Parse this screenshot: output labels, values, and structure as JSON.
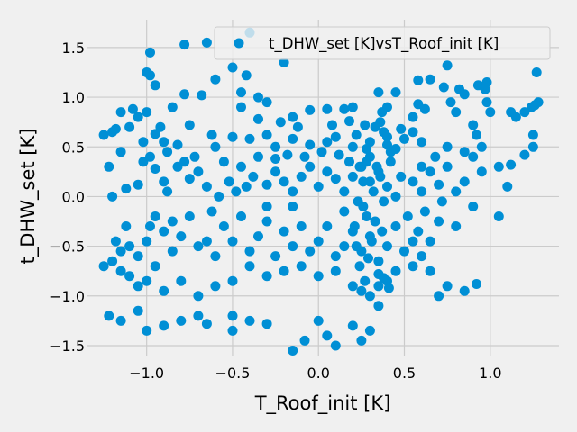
{
  "chart_data": {
    "type": "scatter",
    "title": "",
    "xlabel": "T_Roof_init [K]",
    "ylabel": "t_DHW_set [K]",
    "xlim": [
      -1.35,
      1.4
    ],
    "ylim": [
      -1.6,
      1.78
    ],
    "xticks": [
      -1.0,
      -0.5,
      0.0,
      0.5,
      1.0
    ],
    "xtick_labels": [
      "−1.0",
      "−0.5",
      "0.0",
      "0.5",
      "1.0"
    ],
    "yticks": [
      -1.5,
      -1.0,
      -0.5,
      0.0,
      0.5,
      1.0,
      1.5
    ],
    "ytick_labels": [
      "−1.5",
      "−1.0",
      "−0.5",
      "0.0",
      "0.5",
      "1.0",
      "1.5"
    ],
    "grid": true,
    "legend_position": "top-right",
    "colors": {
      "background": "#f0f0f0",
      "grid": "#cbcbcb",
      "marker": "#008fd5",
      "legend_bg": "#f0f0f0",
      "legend_border": "#cccccc"
    },
    "series": [
      {
        "name": "t_DHW_set [K]vsT_Roof_init [K]",
        "color": "#008fd5",
        "points": [
          [
            -0.4,
            1.65
          ],
          [
            -0.65,
            1.55
          ],
          [
            -0.78,
            1.53
          ],
          [
            -0.5,
            1.3
          ],
          [
            -0.98,
            1.45
          ],
          [
            -1.0,
            1.25
          ],
          [
            -0.98,
            1.22
          ],
          [
            -0.95,
            1.12
          ],
          [
            -0.78,
            1.03
          ],
          [
            -0.68,
            1.02
          ],
          [
            -0.6,
            1.18
          ],
          [
            -0.42,
            1.22
          ],
          [
            -0.45,
            1.05
          ],
          [
            -0.35,
            1.0
          ],
          [
            -0.2,
            1.35
          ],
          [
            0.35,
            1.05
          ],
          [
            0.45,
            1.05
          ],
          [
            0.58,
            1.17
          ],
          [
            0.65,
            1.18
          ],
          [
            0.75,
            1.32
          ],
          [
            0.73,
            1.1
          ],
          [
            0.93,
            1.12
          ],
          [
            0.98,
            1.15
          ],
          [
            0.97,
            1.08
          ],
          [
            0.85,
            1.03
          ],
          [
            0.82,
            1.08
          ],
          [
            1.27,
            1.25
          ],
          [
            1.26,
            0.92
          ],
          [
            1.28,
            0.95
          ],
          [
            1.24,
            0.9
          ],
          [
            1.2,
            0.85
          ],
          [
            1.15,
            0.8
          ],
          [
            1.12,
            0.85
          ],
          [
            1.0,
            0.85
          ],
          [
            0.98,
            0.95
          ],
          [
            0.8,
            0.85
          ],
          [
            0.77,
            0.95
          ],
          [
            0.62,
            0.88
          ],
          [
            0.58,
            0.93
          ],
          [
            0.55,
            0.8
          ],
          [
            0.4,
            0.9
          ],
          [
            0.37,
            0.85
          ],
          [
            0.2,
            0.9
          ],
          [
            0.15,
            0.88
          ],
          [
            0.05,
            0.88
          ],
          [
            -0.05,
            0.87
          ],
          [
            -0.15,
            0.8
          ],
          [
            -0.3,
            0.95
          ],
          [
            -0.45,
            0.9
          ],
          [
            -0.85,
            0.9
          ],
          [
            -1.0,
            0.85
          ],
          [
            -1.08,
            0.88
          ],
          [
            -1.15,
            0.85
          ],
          [
            -1.05,
            0.8
          ],
          [
            -0.92,
            0.7
          ],
          [
            -1.1,
            0.7
          ],
          [
            -1.2,
            0.65
          ],
          [
            -1.25,
            0.62
          ],
          [
            -1.18,
            0.68
          ],
          [
            -0.95,
            0.63
          ],
          [
            -0.9,
            0.55
          ],
          [
            -0.82,
            0.52
          ],
          [
            -0.75,
            0.72
          ],
          [
            -0.62,
            0.62
          ],
          [
            -0.6,
            0.5
          ],
          [
            -0.5,
            0.6
          ],
          [
            -0.4,
            0.58
          ],
          [
            -0.3,
            0.62
          ],
          [
            -0.25,
            0.5
          ],
          [
            -0.15,
            0.58
          ],
          [
            -0.05,
            0.52
          ],
          [
            0.05,
            0.55
          ],
          [
            0.1,
            0.6
          ],
          [
            0.2,
            0.5
          ],
          [
            0.3,
            0.55
          ],
          [
            0.4,
            0.52
          ],
          [
            0.45,
            0.48
          ],
          [
            0.5,
            0.58
          ],
          [
            0.6,
            0.55
          ],
          [
            0.75,
            0.5
          ],
          [
            0.85,
            0.45
          ],
          [
            0.9,
            0.4
          ],
          [
            0.95,
            0.5
          ],
          [
            1.25,
            0.62
          ],
          [
            1.25,
            0.5
          ],
          [
            1.12,
            0.32
          ],
          [
            -1.2,
            0.0
          ],
          [
            -1.12,
            0.08
          ],
          [
            -1.05,
            0.12
          ],
          [
            -1.02,
            0.35
          ],
          [
            -0.98,
            0.4
          ],
          [
            -0.95,
            0.28
          ],
          [
            -0.9,
            0.15
          ],
          [
            -0.88,
            0.05
          ],
          [
            -0.82,
            0.3
          ],
          [
            -0.75,
            0.18
          ],
          [
            -0.7,
            0.25
          ],
          [
            -0.65,
            0.1
          ],
          [
            -0.58,
            0.0
          ],
          [
            -0.52,
            0.15
          ],
          [
            -0.48,
            0.05
          ],
          [
            -0.42,
            0.1
          ],
          [
            -0.38,
            0.2
          ],
          [
            -0.3,
            0.12
          ],
          [
            -0.25,
            0.25
          ],
          [
            -0.2,
            0.15
          ],
          [
            -0.15,
            0.05
          ],
          [
            -0.1,
            0.2
          ],
          [
            -0.05,
            0.3
          ],
          [
            0.0,
            0.1
          ],
          [
            0.05,
            0.25
          ],
          [
            0.1,
            0.18
          ],
          [
            0.15,
            0.05
          ],
          [
            0.2,
            0.2
          ],
          [
            0.25,
            0.3
          ],
          [
            0.3,
            0.15
          ],
          [
            0.35,
            0.25
          ],
          [
            0.4,
            0.1
          ],
          [
            0.42,
            0.35
          ],
          [
            0.48,
            0.2
          ],
          [
            0.55,
            0.15
          ],
          [
            0.6,
            0.05
          ],
          [
            0.65,
            0.25
          ],
          [
            0.7,
            0.12
          ],
          [
            0.75,
            0.3
          ],
          [
            0.8,
            0.05
          ],
          [
            0.85,
            0.15
          ],
          [
            0.95,
            0.25
          ],
          [
            1.05,
            0.3
          ],
          [
            1.1,
            0.1
          ],
          [
            -1.15,
            -0.55
          ],
          [
            -1.1,
            -0.5
          ],
          [
            -1.05,
            -0.6
          ],
          [
            -1.0,
            -0.45
          ],
          [
            -0.98,
            -0.3
          ],
          [
            -0.95,
            -0.2
          ],
          [
            -0.9,
            -0.35
          ],
          [
            -0.85,
            -0.55
          ],
          [
            -0.8,
            -0.4
          ],
          [
            -0.75,
            -0.2
          ],
          [
            -0.7,
            -0.5
          ],
          [
            -0.65,
            -0.45
          ],
          [
            -0.6,
            -0.6
          ],
          [
            -0.55,
            -0.3
          ],
          [
            -0.5,
            -0.45
          ],
          [
            -0.45,
            -0.2
          ],
          [
            -0.4,
            -0.55
          ],
          [
            -0.35,
            -0.4
          ],
          [
            -0.3,
            -0.25
          ],
          [
            -0.25,
            -0.6
          ],
          [
            -0.2,
            -0.35
          ],
          [
            -0.15,
            -0.5
          ],
          [
            -0.1,
            -0.3
          ],
          [
            -0.05,
            -0.55
          ],
          [
            0.0,
            -0.45
          ],
          [
            0.05,
            -0.3
          ],
          [
            0.1,
            -0.6
          ],
          [
            0.15,
            -0.5
          ],
          [
            0.2,
            -0.35
          ],
          [
            0.25,
            -0.55
          ],
          [
            0.3,
            -0.4
          ],
          [
            0.35,
            -0.65
          ],
          [
            0.4,
            -0.5
          ],
          [
            0.45,
            -0.3
          ],
          [
            0.5,
            -0.55
          ],
          [
            0.55,
            -0.45
          ],
          [
            0.6,
            -0.6
          ],
          [
            0.65,
            -0.45
          ],
          [
            0.7,
            -0.25
          ],
          [
            0.8,
            -0.3
          ],
          [
            0.9,
            -0.1
          ],
          [
            1.05,
            -0.2
          ],
          [
            -1.25,
            -0.7
          ],
          [
            -1.2,
            -0.65
          ],
          [
            -1.15,
            -0.75
          ],
          [
            -1.1,
            -0.8
          ],
          [
            -1.05,
            -0.9
          ],
          [
            -1.0,
            -0.85
          ],
          [
            -0.95,
            -0.7
          ],
          [
            -0.9,
            -0.95
          ],
          [
            -0.8,
            -0.85
          ],
          [
            -0.7,
            -1.0
          ],
          [
            -0.6,
            -0.9
          ],
          [
            -0.5,
            -0.85
          ],
          [
            -0.4,
            -0.7
          ],
          [
            -0.3,
            -0.8
          ],
          [
            -0.2,
            -0.75
          ],
          [
            -0.1,
            -0.7
          ],
          [
            0.0,
            -0.8
          ],
          [
            0.1,
            -0.75
          ],
          [
            0.2,
            -0.9
          ],
          [
            0.25,
            -0.95
          ],
          [
            0.3,
            -1.0
          ],
          [
            0.35,
            -0.9
          ],
          [
            0.4,
            -0.85
          ],
          [
            0.45,
            -0.75
          ],
          [
            0.55,
            -0.7
          ],
          [
            0.65,
            -0.75
          ],
          [
            0.7,
            -1.0
          ],
          [
            0.75,
            -0.9
          ],
          [
            0.85,
            -0.95
          ],
          [
            0.92,
            -0.88
          ],
          [
            -1.22,
            -1.2
          ],
          [
            -1.15,
            -1.25
          ],
          [
            -1.0,
            -1.35
          ],
          [
            -0.9,
            -1.3
          ],
          [
            -0.8,
            -1.25
          ],
          [
            -0.65,
            -1.28
          ],
          [
            -0.5,
            -1.2
          ],
          [
            -0.4,
            -1.25
          ],
          [
            -0.3,
            -1.28
          ],
          [
            -0.15,
            -1.55
          ],
          [
            -0.08,
            -1.45
          ],
          [
            0.05,
            -1.4
          ],
          [
            0.1,
            -1.5
          ],
          [
            0.25,
            -1.45
          ],
          [
            0.3,
            -1.35
          ],
          [
            0.0,
            -1.25
          ],
          [
            -0.5,
            -1.35
          ],
          [
            -0.7,
            -1.2
          ],
          [
            -1.05,
            -1.15
          ],
          [
            0.2,
            -1.3
          ],
          [
            0.35,
            -1.1
          ],
          [
            -0.3,
            -0.1
          ],
          [
            -0.15,
            -0.1
          ],
          [
            0.15,
            -0.15
          ],
          [
            0.28,
            -0.2
          ],
          [
            0.38,
            -0.05
          ],
          [
            0.45,
            0.0
          ],
          [
            -0.62,
            -0.15
          ],
          [
            -0.85,
            -0.25
          ],
          [
            -1.12,
            -0.3
          ],
          [
            -1.18,
            -0.45
          ],
          [
            0.33,
            0.7
          ],
          [
            0.36,
            0.75
          ],
          [
            0.38,
            0.65
          ],
          [
            0.4,
            0.6
          ],
          [
            0.42,
            0.45
          ],
          [
            0.3,
            0.4
          ],
          [
            0.28,
            0.35
          ],
          [
            0.34,
            0.3
          ],
          [
            0.36,
            0.2
          ],
          [
            0.32,
            0.05
          ],
          [
            0.26,
            -0.1
          ],
          [
            0.33,
            -0.25
          ],
          [
            0.37,
            -0.35
          ],
          [
            0.31,
            -0.45
          ],
          [
            0.29,
            -0.62
          ],
          [
            0.35,
            -0.78
          ],
          [
            0.38,
            -0.82
          ],
          [
            0.41,
            -0.92
          ],
          [
            0.27,
            -0.85
          ],
          [
            0.24,
            -0.7
          ],
          [
            0.22,
            -0.5
          ],
          [
            0.21,
            -0.3
          ],
          [
            0.23,
            -0.05
          ],
          [
            0.26,
            0.15
          ],
          [
            0.24,
            0.3
          ],
          [
            0.28,
            0.48
          ],
          [
            0.22,
            0.62
          ],
          [
            0.27,
            0.72
          ],
          [
            -0.55,
            0.35
          ],
          [
            -0.45,
            0.3
          ],
          [
            -0.35,
            0.4
          ],
          [
            -0.25,
            0.38
          ],
          [
            -0.18,
            0.42
          ],
          [
            -0.08,
            0.4
          ],
          [
            0.02,
            0.45
          ],
          [
            0.12,
            0.42
          ],
          [
            0.18,
            0.35
          ],
          [
            -0.72,
            0.4
          ],
          [
            -0.78,
            0.35
          ],
          [
            -0.88,
            0.45
          ],
          [
            -1.02,
            0.55
          ],
          [
            -1.15,
            0.45
          ],
          [
            -1.22,
            0.3
          ],
          [
            0.6,
            0.3
          ],
          [
            0.68,
            0.4
          ],
          [
            0.72,
            -0.05
          ],
          [
            0.62,
            -0.15
          ],
          [
            0.52,
            -0.2
          ],
          [
            0.58,
            -0.35
          ],
          [
            -0.12,
            0.7
          ],
          [
            -0.22,
            0.75
          ],
          [
            -0.35,
            0.78
          ],
          [
            0.08,
            0.72
          ],
          [
            0.18,
            0.76
          ],
          [
            0.48,
            0.68
          ],
          [
            0.55,
            0.65
          ],
          [
            0.9,
            0.72
          ],
          [
            1.2,
            0.42
          ],
          [
            0.92,
            0.62
          ]
        ]
      }
    ]
  }
}
